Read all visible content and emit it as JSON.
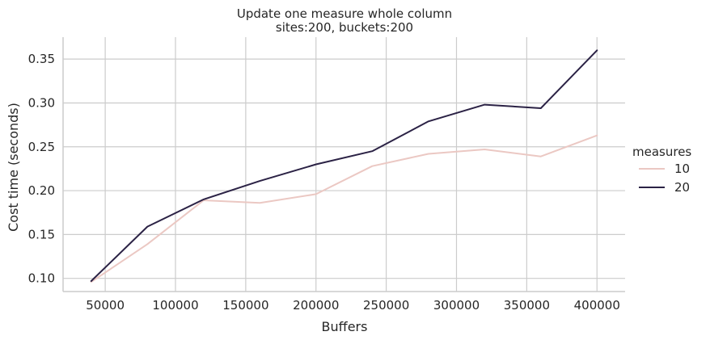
{
  "chart_data": {
    "type": "line",
    "title": "Update one measure whole column",
    "subtitle": "sites:200, buckets:200",
    "xlabel": "Buffers",
    "ylabel": "Cost time (seconds)",
    "xlim": [
      20000,
      420000
    ],
    "ylim": [
      0.085,
      0.375
    ],
    "x_ticks": [
      50000,
      100000,
      150000,
      200000,
      250000,
      300000,
      350000,
      400000
    ],
    "x_tick_labels": [
      "50000",
      "100000",
      "150000",
      "200000",
      "250000",
      "300000",
      "350000",
      "400000"
    ],
    "y_ticks": [
      0.1,
      0.15,
      0.2,
      0.25,
      0.3,
      0.35
    ],
    "y_tick_labels": [
      "0.10",
      "0.15",
      "0.20",
      "0.25",
      "0.30",
      "0.35"
    ],
    "grid": true,
    "legend": {
      "title": "measures",
      "placement": "right"
    },
    "x": [
      40000,
      80000,
      120000,
      160000,
      200000,
      240000,
      280000,
      320000,
      360000,
      400000
    ],
    "series": [
      {
        "name": "10",
        "color": "#ebc8c3",
        "values": [
          0.096,
          0.139,
          0.189,
          0.186,
          0.196,
          0.228,
          0.242,
          0.247,
          0.239,
          0.263
        ]
      },
      {
        "name": "20",
        "color": "#2b2245",
        "values": [
          0.097,
          0.159,
          0.19,
          0.211,
          0.23,
          0.245,
          0.279,
          0.298,
          0.294,
          0.36
        ]
      }
    ]
  }
}
